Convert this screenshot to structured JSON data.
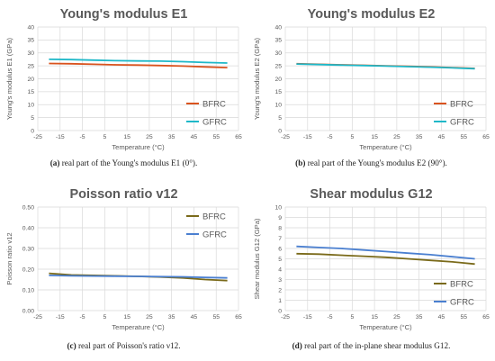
{
  "captions": [
    {
      "prefix": "(a)",
      "text": "real part of the Young's modulus E1 (0°)."
    },
    {
      "prefix": "(b)",
      "text": "real part of the Young's modulus E2 (90°)."
    },
    {
      "prefix": "(c)",
      "text": "real part of Poisson's ratio ν12."
    },
    {
      "prefix": "(d)",
      "text": "real part of the in-plane shear modulus G12."
    }
  ],
  "chart_data": [
    {
      "type": "line",
      "title": "Young's modulus E1",
      "xlabel": "Temperature (°C)",
      "ylabel": "Young's modulus E1 (GPa)",
      "xlim": [
        -25,
        65
      ],
      "ylim": [
        0,
        40
      ],
      "xticks": [
        "-25",
        "-15",
        "-5",
        "5",
        "15",
        "25",
        "35",
        "45",
        "55",
        "65"
      ],
      "yticks": [
        "0",
        "5",
        "10",
        "15",
        "20",
        "25",
        "30",
        "35",
        "40"
      ],
      "legend_position": "bottom-right",
      "x": [
        -20,
        -10,
        0,
        10,
        20,
        30,
        40,
        50,
        60
      ],
      "series": [
        {
          "name": "BFRC",
          "color": "#d9531e",
          "values": [
            25.9,
            25.8,
            25.6,
            25.4,
            25.3,
            25.1,
            24.9,
            24.6,
            24.3
          ]
        },
        {
          "name": "GFRC",
          "color": "#1fb8c8",
          "values": [
            27.5,
            27.4,
            27.2,
            27.0,
            26.9,
            26.8,
            26.6,
            26.3,
            26.1
          ]
        }
      ]
    },
    {
      "type": "line",
      "title": "Young's modulus E2",
      "xlabel": "Temperature (°C)",
      "ylabel": "Young's modulus E2 (GPa)",
      "xlim": [
        -25,
        65
      ],
      "ylim": [
        0,
        40
      ],
      "xticks": [
        "-25",
        "-15",
        "-5",
        "5",
        "15",
        "25",
        "35",
        "45",
        "55",
        "65"
      ],
      "yticks": [
        "0",
        "5",
        "10",
        "15",
        "20",
        "25",
        "30",
        "35",
        "40"
      ],
      "legend_position": "bottom-right",
      "x": [
        -20,
        -10,
        0,
        10,
        20,
        30,
        40,
        50,
        60
      ],
      "series": [
        {
          "name": "BFRC",
          "color": "#d9531e",
          "values": [
            25.8,
            25.6,
            25.4,
            25.2,
            25.0,
            24.8,
            24.6,
            24.3,
            24.0
          ]
        },
        {
          "name": "GFRC",
          "color": "#1fb8c8",
          "values": [
            25.7,
            25.5,
            25.3,
            25.1,
            24.9,
            24.7,
            24.5,
            24.2,
            23.9
          ]
        }
      ]
    },
    {
      "type": "line",
      "title": "Poisson ratio v12",
      "xlabel": "Temperature (°C)",
      "ylabel": "Poisson ratio v12",
      "xlim": [
        -25,
        65
      ],
      "ylim": [
        0,
        0.5
      ],
      "xticks": [
        "-25",
        "-15",
        "-5",
        "5",
        "15",
        "25",
        "35",
        "45",
        "55",
        "65"
      ],
      "yticks": [
        "0.00",
        "0.10",
        "0.20",
        "0.30",
        "0.40",
        "0.50"
      ],
      "legend_position": "top-right",
      "x": [
        -20,
        -10,
        0,
        10,
        20,
        30,
        40,
        50,
        60
      ],
      "series": [
        {
          "name": "BFRC",
          "color": "#7a6a1a",
          "values": [
            0.18,
            0.172,
            0.17,
            0.168,
            0.165,
            0.162,
            0.158,
            0.15,
            0.145
          ]
        },
        {
          "name": "GFRC",
          "color": "#4a7fd0",
          "values": [
            0.17,
            0.168,
            0.167,
            0.166,
            0.165,
            0.164,
            0.163,
            0.16,
            0.158
          ]
        }
      ]
    },
    {
      "type": "line",
      "title": "Shear modulus G12",
      "xlabel": "Temperature (°C)",
      "ylabel": "Shear modulus G12 (GPa)",
      "xlim": [
        -25,
        65
      ],
      "ylim": [
        0,
        10
      ],
      "xticks": [
        "-25",
        "-15",
        "-5",
        "5",
        "15",
        "25",
        "35",
        "45",
        "55",
        "65"
      ],
      "yticks": [
        "0",
        "1",
        "2",
        "3",
        "4",
        "5",
        "6",
        "7",
        "8",
        "9",
        "10"
      ],
      "legend_position": "bottom-right",
      "x": [
        -20,
        -10,
        0,
        10,
        20,
        30,
        40,
        50,
        60
      ],
      "series": [
        {
          "name": "BFRC",
          "color": "#7a6a1a",
          "values": [
            5.5,
            5.45,
            5.35,
            5.25,
            5.15,
            5.0,
            4.85,
            4.7,
            4.5
          ]
        },
        {
          "name": "GFRC",
          "color": "#4a7fd0",
          "values": [
            6.2,
            6.1,
            6.0,
            5.85,
            5.7,
            5.55,
            5.4,
            5.2,
            5.0
          ]
        }
      ]
    }
  ]
}
